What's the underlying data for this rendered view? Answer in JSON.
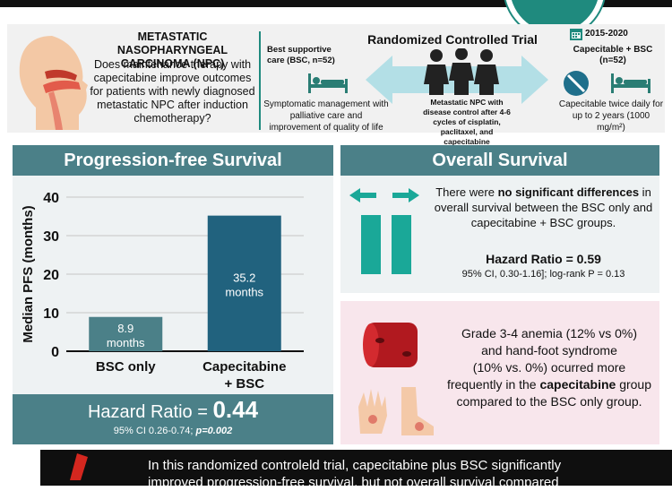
{
  "header": {
    "question_title": "METASTATIC NASOPHARYNGEAL CARCINOMA (NPC)",
    "question_text": "Does maintenance therapy with capecitabine improve outcomes for patients with newly diagnosed metastatic NPC after induction chemotherapy?",
    "rct_title": "Randomized Controlled Trial",
    "bsc_arm_label": "Best supportive care (BSC, n=52)",
    "bsc_arm_desc": "Symptomatic management with palliative care and improvement of quality of life",
    "population_desc": "Metastatic NPC with disease control after 4-6 cycles of cisplatin, paclitaxel, and capecitabine",
    "years": "2015-2020",
    "cap_arm_label": "Capecitable + BSC (n=52)",
    "cap_arm_desc": "Capecitable twice daily for up to 2 years (1000 mg/m²)"
  },
  "pfs": {
    "title": "Progression-free Survival",
    "hr_label": "Hazard Ratio = ",
    "hr_value": "0.44",
    "ci_text": "95% CI 0.26-0.74; ",
    "p_text": "p=0.002"
  },
  "chart_data": {
    "type": "bar",
    "categories": [
      "BSC only",
      "Capecitabine + BSC"
    ],
    "values": [
      8.9,
      35.2
    ],
    "data_labels": [
      "8.9 months",
      "35.2 months"
    ],
    "ylabel": "Median PFS (months)",
    "ylim": [
      0,
      40
    ],
    "yticks": [
      0,
      10,
      20,
      30,
      40
    ],
    "grid": true,
    "colors": [
      "#4b8088",
      "#21627e"
    ]
  },
  "os": {
    "title": "Overall Survival",
    "text_pre": "There were ",
    "text_bold": "no significant differences",
    "text_post": " in overall survival between the BSC only and capecitabine + BSC groups.",
    "hr_label": "Hazard Ratio = 0.59",
    "ci_text": "95% CI, 0.30-1.16]; log-rank P = 0.13"
  },
  "ae": {
    "p1": "Grade 3-4 anemia (12% vs 0%)",
    "p2": "and hand-foot syndrome",
    "p3": "(10% vs. 0%)",
    "p4": " ocurred more frequently in the ",
    "p5": "capecitabine",
    "p6": " group compared to the BSC only group."
  },
  "conclusion": {
    "line1": "In this randomized controleld trial, capecitabine plus BSC significantly",
    "line2": "improved progression-free survival, but not overall survival compared"
  },
  "colors": {
    "teal": "#1f8a7e",
    "panel_header": "#4b8088",
    "bar_bsc": "#4b8088",
    "bar_cap": "#21627e",
    "arrow_teal": "#1aa898"
  },
  "icons": [
    "head-profile-icon",
    "hospital-bed-icon",
    "people-group-icon",
    "pill-icon",
    "calendar-icon",
    "blood-vessel-icon",
    "hand-foot-icon",
    "double-arrow-icon",
    "warning-icon"
  ]
}
